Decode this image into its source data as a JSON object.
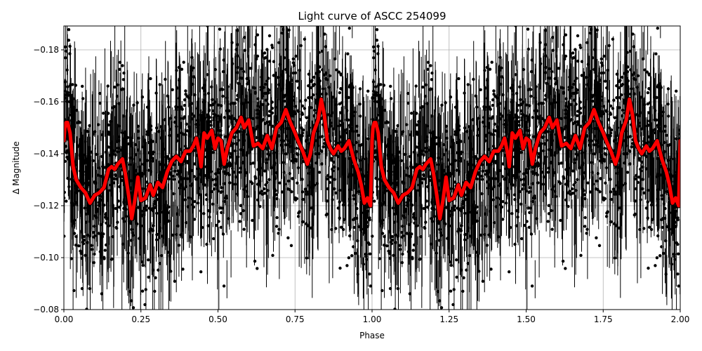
{
  "chart_data": {
    "type": "scatter",
    "title": "Light curve of ASCC 254099",
    "xlabel": "Phase",
    "ylabel": "Δ Magnitude",
    "xlim": [
      0.0,
      2.0
    ],
    "ylim": [
      -0.08,
      -0.189
    ],
    "y_inverted": true,
    "grid": true,
    "legend": null,
    "x_ticks": [
      "0.00",
      "0.25",
      "0.50",
      "0.75",
      "1.00",
      "1.25",
      "1.50",
      "1.75",
      "2.00"
    ],
    "x_tick_values": [
      0.0,
      0.25,
      0.5,
      0.75,
      1.0,
      1.25,
      1.5,
      1.75,
      2.0
    ],
    "y_ticks": [
      "−0.18",
      "−0.16",
      "−0.14",
      "−0.12",
      "−0.10",
      "−0.08"
    ],
    "y_tick_values": [
      -0.18,
      -0.16,
      -0.14,
      -0.12,
      -0.1,
      -0.08
    ],
    "series": [
      {
        "name": "observations",
        "style": "black points with vertical error bars",
        "color": "#000000",
        "description": "Dense phase-folded photometry, values scattered roughly between -0.08 and -0.19 around the binned curve, repeated over two phase cycles",
        "typical_scatter": 0.025,
        "typical_errorbar": 0.012
      },
      {
        "name": "binned curve",
        "style": "thick red line",
        "color": "#ff0000",
        "phase": [
          0.0,
          0.003,
          0.007,
          0.012,
          0.02,
          0.03,
          0.04,
          0.055,
          0.07,
          0.085,
          0.1,
          0.115,
          0.13,
          0.145,
          0.155,
          0.165,
          0.175,
          0.19,
          0.2,
          0.21,
          0.22,
          0.23,
          0.24,
          0.25,
          0.265,
          0.28,
          0.29,
          0.305,
          0.32,
          0.335,
          0.35,
          0.365,
          0.38,
          0.395,
          0.41,
          0.42,
          0.43,
          0.44,
          0.445,
          0.455,
          0.465,
          0.48,
          0.49,
          0.5,
          0.51,
          0.52,
          0.53,
          0.545,
          0.56,
          0.575,
          0.585,
          0.6,
          0.615,
          0.63,
          0.645,
          0.66,
          0.675,
          0.69,
          0.705,
          0.72,
          0.735,
          0.75,
          0.76,
          0.775,
          0.79,
          0.8,
          0.81,
          0.825,
          0.835,
          0.845,
          0.855,
          0.865,
          0.875,
          0.89,
          0.9,
          0.91,
          0.925,
          0.94,
          0.955,
          0.965,
          0.975,
          0.985,
          0.995,
          1.0
        ],
        "values": [
          -0.145,
          -0.15,
          -0.152,
          -0.152,
          -0.148,
          -0.135,
          -0.13,
          -0.127,
          -0.125,
          -0.121,
          -0.124,
          -0.125,
          -0.127,
          -0.134,
          -0.135,
          -0.134,
          -0.136,
          -0.138,
          -0.132,
          -0.124,
          -0.115,
          -0.122,
          -0.131,
          -0.122,
          -0.123,
          -0.128,
          -0.124,
          -0.129,
          -0.127,
          -0.133,
          -0.137,
          -0.139,
          -0.137,
          -0.141,
          -0.141,
          -0.143,
          -0.146,
          -0.14,
          -0.135,
          -0.148,
          -0.146,
          -0.149,
          -0.142,
          -0.146,
          -0.145,
          -0.136,
          -0.142,
          -0.148,
          -0.15,
          -0.154,
          -0.15,
          -0.153,
          -0.143,
          -0.144,
          -0.142,
          -0.147,
          -0.142,
          -0.15,
          -0.152,
          -0.157,
          -0.152,
          -0.148,
          -0.145,
          -0.141,
          -0.136,
          -0.14,
          -0.148,
          -0.153,
          -0.161,
          -0.155,
          -0.145,
          -0.142,
          -0.14,
          -0.143,
          -0.141,
          -0.142,
          -0.145,
          -0.138,
          -0.133,
          -0.128,
          -0.121,
          -0.123,
          -0.12,
          -0.145
        ]
      }
    ]
  }
}
